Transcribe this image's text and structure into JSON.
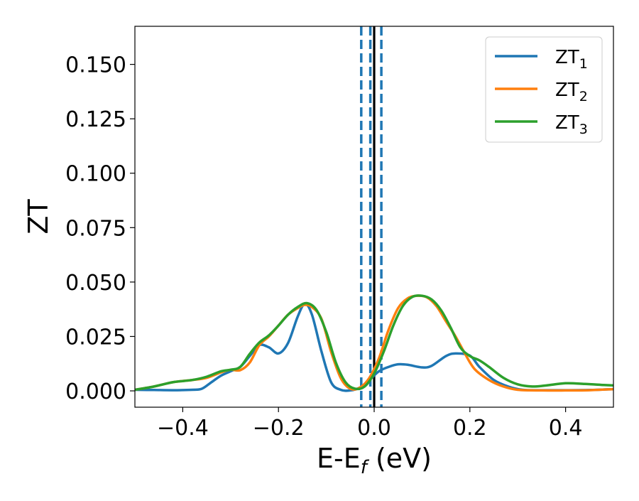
{
  "chart_data": {
    "type": "line",
    "title": "",
    "xlabel_main": "E-E",
    "xlabel_sub": "f",
    "xlabel_unit": " (eV)",
    "ylabel": "ZT",
    "xlim": [
      -0.5,
      0.5
    ],
    "ylim": [
      -0.0075,
      0.1675
    ],
    "xticks": [
      -0.4,
      -0.2,
      0.0,
      0.2,
      0.4
    ],
    "xtick_labels": [
      "−0.4",
      "−0.2",
      "0.0",
      "0.2",
      "0.4"
    ],
    "yticks": [
      0.0,
      0.025,
      0.05,
      0.075,
      0.1,
      0.125,
      0.15
    ],
    "ytick_labels": [
      "0.000",
      "0.025",
      "0.050",
      "0.075",
      "0.100",
      "0.125",
      "0.150"
    ],
    "grid": false,
    "legend_position": "top-right",
    "vlines": [
      {
        "x": -0.027,
        "style": "dashed",
        "color": "#1f77b4"
      },
      {
        "x": -0.008,
        "style": "dashed",
        "color": "#1f77b4"
      },
      {
        "x": 0.0,
        "style": "solid",
        "color": "#000000"
      },
      {
        "x": 0.015,
        "style": "dashed",
        "color": "#1f77b4"
      }
    ],
    "series": [
      {
        "name": "ZT",
        "subscript": "1",
        "color": "#1f77b4",
        "points": [
          [
            -0.5,
            0.0005
          ],
          [
            -0.46,
            0.0004
          ],
          [
            -0.42,
            0.0003
          ],
          [
            -0.38,
            0.0005
          ],
          [
            -0.36,
            0.001
          ],
          [
            -0.34,
            0.004
          ],
          [
            -0.32,
            0.007
          ],
          [
            -0.3,
            0.009
          ],
          [
            -0.28,
            0.011
          ],
          [
            -0.26,
            0.016
          ],
          [
            -0.24,
            0.021
          ],
          [
            -0.22,
            0.02
          ],
          [
            -0.2,
            0.0172
          ],
          [
            -0.18,
            0.022
          ],
          [
            -0.16,
            0.034
          ],
          [
            -0.145,
            0.04
          ],
          [
            -0.13,
            0.035
          ],
          [
            -0.11,
            0.018
          ],
          [
            -0.09,
            0.004
          ],
          [
            -0.07,
            0.0005
          ],
          [
            -0.05,
            0.0002
          ],
          [
            -0.03,
            0.0015
          ],
          [
            -0.01,
            0.005
          ],
          [
            0.01,
            0.009
          ],
          [
            0.03,
            0.011
          ],
          [
            0.05,
            0.0122
          ],
          [
            0.07,
            0.012
          ],
          [
            0.1,
            0.0108
          ],
          [
            0.12,
            0.0115
          ],
          [
            0.15,
            0.016
          ],
          [
            0.17,
            0.0172
          ],
          [
            0.2,
            0.0162
          ],
          [
            0.22,
            0.011
          ],
          [
            0.25,
            0.005
          ],
          [
            0.28,
            0.002
          ],
          [
            0.31,
            0.0005
          ],
          [
            0.35,
            0.0003
          ],
          [
            0.4,
            0.0003
          ],
          [
            0.45,
            0.0004
          ],
          [
            0.5,
            0.0008
          ]
        ]
      },
      {
        "name": "ZT",
        "subscript": "2",
        "color": "#ff7f0e",
        "points": [
          [
            -0.5,
            0.0005
          ],
          [
            -0.46,
            0.002
          ],
          [
            -0.42,
            0.004
          ],
          [
            -0.38,
            0.005
          ],
          [
            -0.35,
            0.006
          ],
          [
            -0.32,
            0.0085
          ],
          [
            -0.3,
            0.0097
          ],
          [
            -0.28,
            0.0095
          ],
          [
            -0.26,
            0.013
          ],
          [
            -0.24,
            0.021
          ],
          [
            -0.22,
            0.025
          ],
          [
            -0.2,
            0.03
          ],
          [
            -0.18,
            0.035
          ],
          [
            -0.16,
            0.038
          ],
          [
            -0.145,
            0.0395
          ],
          [
            -0.13,
            0.0385
          ],
          [
            -0.11,
            0.033
          ],
          [
            -0.09,
            0.018
          ],
          [
            -0.07,
            0.006
          ],
          [
            -0.05,
            0.001
          ],
          [
            -0.03,
            0.0015
          ],
          [
            -0.01,
            0.006
          ],
          [
            0.01,
            0.015
          ],
          [
            0.03,
            0.028
          ],
          [
            0.05,
            0.038
          ],
          [
            0.07,
            0.0425
          ],
          [
            0.09,
            0.0437
          ],
          [
            0.11,
            0.043
          ],
          [
            0.13,
            0.039
          ],
          [
            0.15,
            0.032
          ],
          [
            0.17,
            0.025
          ],
          [
            0.19,
            0.017
          ],
          [
            0.21,
            0.01
          ],
          [
            0.24,
            0.005
          ],
          [
            0.27,
            0.002
          ],
          [
            0.3,
            0.0005
          ],
          [
            0.35,
            0.0002
          ],
          [
            0.4,
            0.0002
          ],
          [
            0.45,
            0.0003
          ],
          [
            0.5,
            0.0008
          ]
        ]
      },
      {
        "name": "ZT",
        "subscript": "3",
        "color": "#2ca02c",
        "points": [
          [
            -0.5,
            0.0005
          ],
          [
            -0.46,
            0.002
          ],
          [
            -0.42,
            0.004
          ],
          [
            -0.38,
            0.005
          ],
          [
            -0.35,
            0.0065
          ],
          [
            -0.32,
            0.009
          ],
          [
            -0.3,
            0.0097
          ],
          [
            -0.28,
            0.011
          ],
          [
            -0.26,
            0.017
          ],
          [
            -0.24,
            0.0222
          ],
          [
            -0.22,
            0.0255
          ],
          [
            -0.2,
            0.03
          ],
          [
            -0.18,
            0.035
          ],
          [
            -0.16,
            0.0385
          ],
          [
            -0.14,
            0.0403
          ],
          [
            -0.12,
            0.037
          ],
          [
            -0.1,
            0.027
          ],
          [
            -0.08,
            0.013
          ],
          [
            -0.06,
            0.004
          ],
          [
            -0.04,
            0.001
          ],
          [
            -0.02,
            0.002
          ],
          [
            0.0,
            0.008
          ],
          [
            0.02,
            0.018
          ],
          [
            0.04,
            0.03
          ],
          [
            0.06,
            0.039
          ],
          [
            0.08,
            0.0432
          ],
          [
            0.1,
            0.0437
          ],
          [
            0.12,
            0.042
          ],
          [
            0.14,
            0.037
          ],
          [
            0.16,
            0.029
          ],
          [
            0.18,
            0.02
          ],
          [
            0.2,
            0.016
          ],
          [
            0.22,
            0.014
          ],
          [
            0.24,
            0.011
          ],
          [
            0.27,
            0.006
          ],
          [
            0.3,
            0.003
          ],
          [
            0.33,
            0.002
          ],
          [
            0.36,
            0.0025
          ],
          [
            0.4,
            0.0035
          ],
          [
            0.44,
            0.0032
          ],
          [
            0.48,
            0.0027
          ],
          [
            0.5,
            0.0025
          ]
        ]
      }
    ]
  }
}
